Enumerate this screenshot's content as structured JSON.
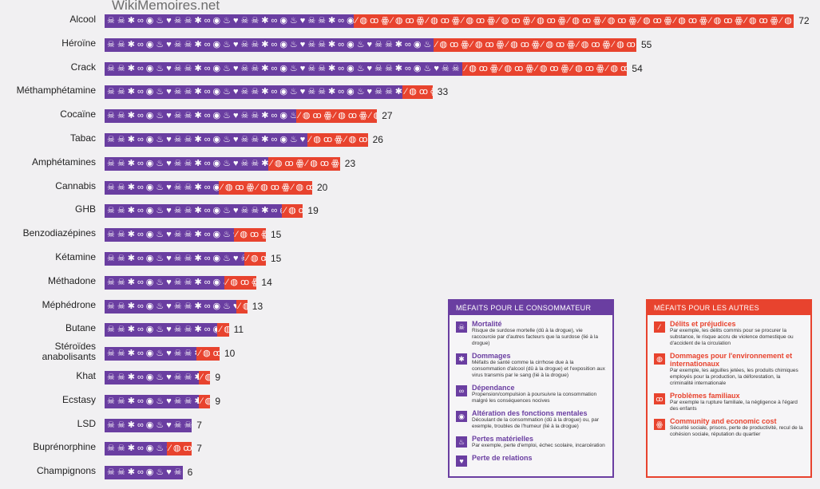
{
  "watermark": "WikiMemoires.net",
  "colors": {
    "users": "#6a3ea1",
    "others": "#e8432e"
  },
  "chart_data": {
    "type": "bar",
    "orientation": "horizontal",
    "stacked": true,
    "categories": [
      "Alcool",
      "Héroïne",
      "Crack",
      "Méthamphétamine",
      "Cocaïne",
      "Tabac",
      "Amphétamines",
      "Cannabis",
      "GHB",
      "Benzodiazépines",
      "Kétamine",
      "Méthadone",
      "Méphédrone",
      "Butane",
      "Stéroïdes anabolisants",
      "Khat",
      "Ecstasy",
      "LSD",
      "Buprénorphine",
      "Champignons"
    ],
    "totals": [
      72,
      55,
      54,
      33,
      27,
      26,
      23,
      20,
      19,
      15,
      15,
      14,
      13,
      11,
      10,
      9,
      9,
      7,
      7,
      6
    ],
    "series": [
      {
        "name": "Méfaits pour le consommateur",
        "values": [
          26,
          34,
          37,
          30,
          19,
          20,
          16,
          11,
          17,
          12,
          13,
          11,
          12,
          10,
          8,
          8,
          8,
          7,
          5,
          6
        ]
      },
      {
        "name": "Méfaits pour les autres",
        "values": [
          46,
          21,
          17,
          3,
          8,
          6,
          7,
          9,
          2,
          3,
          2,
          3,
          1,
          1,
          2,
          1,
          1,
          0,
          2,
          0
        ]
      }
    ]
  },
  "legend_users": {
    "title": "MÉFAITS POUR LE CONSOMMATEUR",
    "items": [
      {
        "icon": "skull-icon",
        "glyph": "☠",
        "title": "Mortalité",
        "desc": "Risque de surdose mortelle (dû à la drogue), vie raccourcie par d'autres facteurs que la surdose (lié à la drogue)"
      },
      {
        "icon": "damage-icon",
        "glyph": "✱",
        "title": "Dommages",
        "desc": "Méfaits de santé comme la cirrhose due à la consommation d'alcool (dû à la drogue) et l'exposition aux virus transmis par le sang (lié à la drogue)"
      },
      {
        "icon": "chain-icon",
        "glyph": "∞",
        "title": "Dépendance",
        "desc": "Propension/compulsion à poursuivre la consommation malgré les conséquences nocives"
      },
      {
        "icon": "brain-icon",
        "glyph": "◉",
        "title": "Altération des fonctions mentales",
        "desc": "Découlant de la consommation (dû à la drogue) ou, par exemple, troubles de l'humeur (lié à la drogue)"
      },
      {
        "icon": "fire-icon",
        "glyph": "♨",
        "title": "Pertes matérielles",
        "desc": "Par exemple, perte d'emploi, échec scolaire, incarcération"
      },
      {
        "icon": "broken-heart-icon",
        "glyph": "♥",
        "title": "Perte de relations",
        "desc": ""
      }
    ]
  },
  "legend_others": {
    "title": "MÉFAITS POUR LES AUTRES",
    "items": [
      {
        "icon": "knife-icon",
        "glyph": "⁄",
        "title": "Délits et préjudices",
        "desc": "Par exemple, les délits commis pour se procurer la substance, le risque accru de violence domestique ou d'accident de la circulation"
      },
      {
        "icon": "globe-icon",
        "glyph": "◍",
        "title": "Dommages pour l'environnement et internationaux",
        "desc": "Par exemple, les aiguilles jetées, les produits chimiques employés pour la production, la déforestation, la criminalité internationale"
      },
      {
        "icon": "family-icon",
        "glyph": "ꝏ",
        "title": "Problèmes familiaux",
        "desc": "Par exemple la rupture familiale, la négligence à l'égard des enfants"
      },
      {
        "icon": "community-icon",
        "glyph": "ꙮ",
        "title": "Community and economic cost",
        "desc": "Sécurité sociale, prisons, perte de productivité, recul de la cohésion sociale, réputation du quartier"
      }
    ]
  }
}
